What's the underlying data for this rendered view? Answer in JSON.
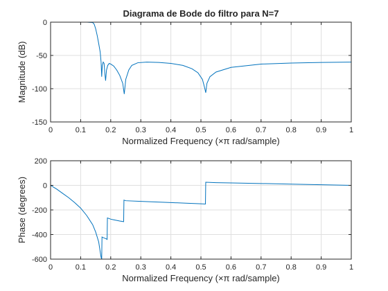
{
  "chart_data": [
    {
      "type": "line",
      "title": "Diagrama de Bode do filtro para N=7",
      "xlabel": "Normalized Frequency  (×π rad/sample)",
      "ylabel": "Magnitude (dB)",
      "xlim": [
        0,
        1
      ],
      "ylim": [
        -150,
        0
      ],
      "xticks": [
        "0",
        "0.1",
        "0.2",
        "0.3",
        "0.4",
        "0.5",
        "0.6",
        "0.7",
        "0.8",
        "0.9",
        "1"
      ],
      "yticks": [
        "-150",
        "-100",
        "-50",
        "0"
      ],
      "grid": true,
      "series": [
        {
          "color": "#0072bd",
          "x": [
            0,
            0.02,
            0.05,
            0.08,
            0.1,
            0.12,
            0.14,
            0.145,
            0.15,
            0.155,
            0.16,
            0.165,
            0.168,
            0.17,
            0.172,
            0.175,
            0.178,
            0.18,
            0.183,
            0.186,
            0.19,
            0.195,
            0.2,
            0.21,
            0.22,
            0.23,
            0.24,
            0.245,
            0.25,
            0.26,
            0.27,
            0.29,
            0.32,
            0.36,
            0.4,
            0.44,
            0.47,
            0.49,
            0.505,
            0.512,
            0.516,
            0.52,
            0.53,
            0.55,
            0.6,
            0.7,
            0.8,
            0.9,
            1.0
          ],
          "y": [
            0,
            0,
            0,
            0,
            0,
            0,
            -0.5,
            -3,
            -10,
            -20,
            -32,
            -45,
            -60,
            -82,
            -65,
            -60,
            -62,
            -75,
            -88,
            -72,
            -65,
            -62,
            -63,
            -66,
            -72,
            -80,
            -92,
            -108,
            -86,
            -72,
            -65,
            -61,
            -60,
            -60.5,
            -62,
            -65,
            -70,
            -76,
            -86,
            -98,
            -106,
            -92,
            -82,
            -75,
            -68,
            -63,
            -61.5,
            -60.5,
            -60
          ]
        }
      ]
    },
    {
      "type": "line",
      "title": "",
      "xlabel": "Normalized Frequency  (×π rad/sample)",
      "ylabel": "Phase (degrees)",
      "xlim": [
        0,
        1
      ],
      "ylim": [
        -600,
        200
      ],
      "xticks": [
        "0",
        "0.1",
        "0.2",
        "0.3",
        "0.4",
        "0.5",
        "0.6",
        "0.7",
        "0.8",
        "0.9",
        "1"
      ],
      "yticks": [
        "-600",
        "-400",
        "-200",
        "0",
        "200"
      ],
      "grid": true,
      "series": [
        {
          "color": "#0072bd",
          "x": [
            0,
            0.01,
            0.02,
            0.04,
            0.06,
            0.08,
            0.1,
            0.12,
            0.14,
            0.15,
            0.16,
            0.165,
            0.168,
            0.17,
            0.171,
            0.175,
            0.18,
            0.185,
            0.188,
            0.189,
            0.195,
            0.2,
            0.21,
            0.22,
            0.23,
            0.243,
            0.244,
            0.25,
            0.3,
            0.35,
            0.4,
            0.45,
            0.5,
            0.515,
            0.516,
            0.55,
            0.6,
            0.7,
            0.8,
            0.9,
            1.0
          ],
          "y": [
            0,
            -15,
            -30,
            -65,
            -100,
            -140,
            -185,
            -245,
            -320,
            -380,
            -460,
            -540,
            -585,
            -600,
            -420,
            -425,
            -430,
            -435,
            -440,
            -265,
            -270,
            -275,
            -280,
            -285,
            -290,
            -295,
            -120,
            -125,
            -130,
            -135,
            -140,
            -145,
            -150,
            -152,
            25,
            22,
            20,
            15,
            10,
            5,
            0
          ]
        }
      ]
    }
  ]
}
